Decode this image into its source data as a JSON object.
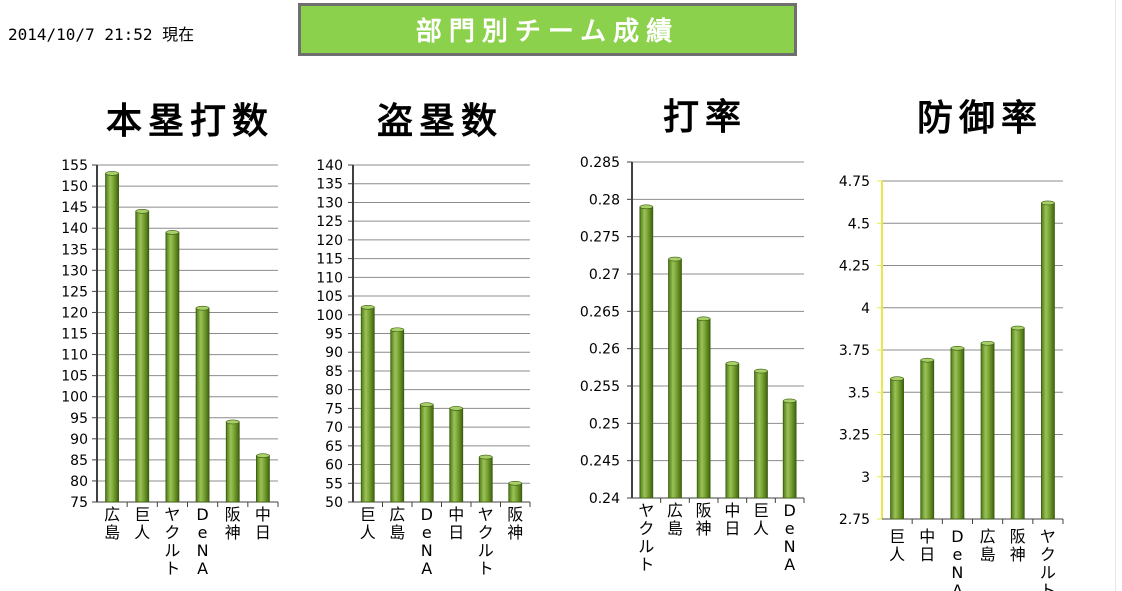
{
  "header": {
    "timestamp": "2014/10/7 21:52 現在",
    "banner_title": "部門別チーム成績"
  },
  "chart_data": [
    {
      "type": "bar",
      "title": "本塁打数",
      "categories": [
        "広島",
        "巨人",
        "ヤクルト",
        "DeNA",
        "阪神",
        "中日"
      ],
      "values": [
        153,
        144,
        139,
        121,
        94,
        86
      ],
      "ylim": [
        75,
        155
      ],
      "ytick_step": 5,
      "yticks": [
        "75",
        "80",
        "85",
        "90",
        "95",
        "100",
        "105",
        "110",
        "115",
        "120",
        "125",
        "130",
        "135",
        "140",
        "145",
        "150",
        "155"
      ],
      "grid": true,
      "bar_color": "#6e9a2c"
    },
    {
      "type": "bar",
      "title": "盗塁数",
      "categories": [
        "巨人",
        "広島",
        "DeNA",
        "中日",
        "ヤクルト",
        "阪神"
      ],
      "values": [
        102,
        96,
        76,
        75,
        62,
        55
      ],
      "ylim": [
        50,
        140
      ],
      "ytick_step": 5,
      "yticks": [
        "50",
        "55",
        "60",
        "65",
        "70",
        "75",
        "80",
        "85",
        "90",
        "95",
        "100",
        "105",
        "110",
        "115",
        "120",
        "125",
        "130",
        "135",
        "140"
      ],
      "grid": true,
      "bar_color": "#6e9a2c"
    },
    {
      "type": "bar",
      "title": "打率",
      "categories": [
        "ヤクルト",
        "広島",
        "阪神",
        "中日",
        "巨人",
        "DeNA"
      ],
      "values": [
        0.279,
        0.272,
        0.264,
        0.258,
        0.257,
        0.253
      ],
      "ylim": [
        0.24,
        0.285
      ],
      "ytick_step": 0.005,
      "yticks": [
        "0.24",
        "0.245",
        "0.25",
        "0.255",
        "0.26",
        "0.265",
        "0.27",
        "0.275",
        "0.28",
        "0.285"
      ],
      "grid": true,
      "bar_color": "#6e9a2c"
    },
    {
      "type": "bar",
      "title": "防御率",
      "categories": [
        "巨人",
        "中日",
        "DeNA",
        "広島",
        "阪神",
        "ヤクルト"
      ],
      "values": [
        3.58,
        3.69,
        3.76,
        3.79,
        3.88,
        4.62
      ],
      "ylim": [
        2.75,
        4.75
      ],
      "ytick_step": 0.25,
      "yticks": [
        "2.75",
        "3",
        "3.25",
        "3.5",
        "3.75",
        "4",
        "4.25",
        "4.5",
        "4.75"
      ],
      "grid": true,
      "bar_color": "#6e9a2c"
    }
  ]
}
